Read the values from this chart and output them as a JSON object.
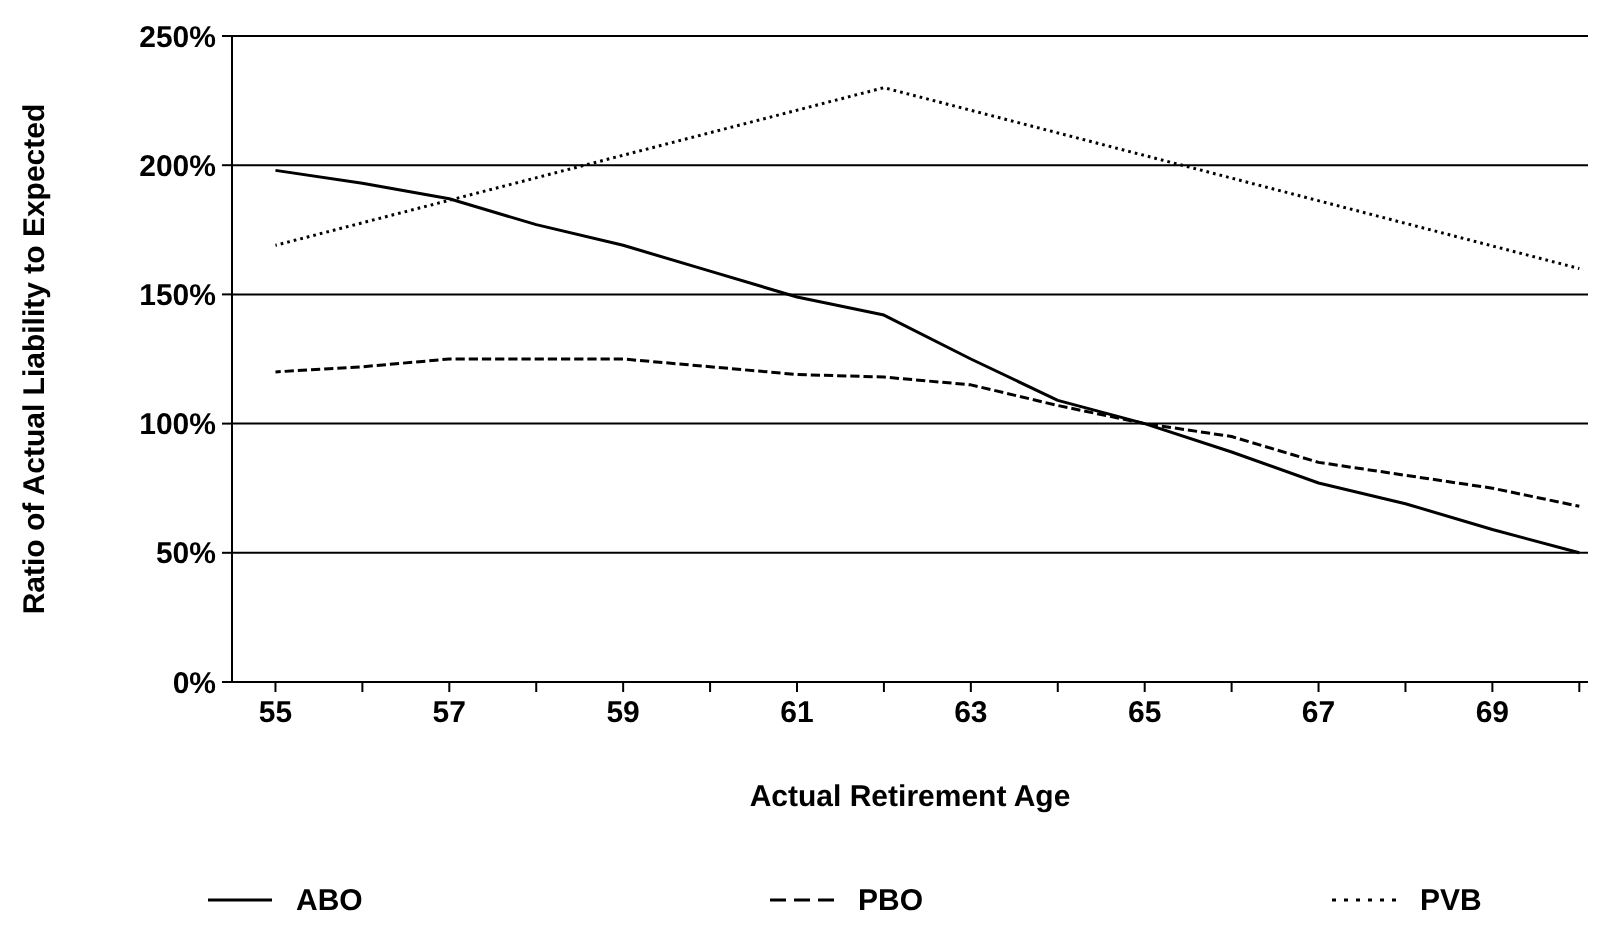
{
  "chart_data": {
    "type": "line",
    "xlabel": "Actual Retirement Age",
    "ylabel": "Ratio of Actual Liability to Expected",
    "xlim": [
      54.5,
      70.1
    ],
    "xticks": [
      55,
      {
        "value": 56,
        "label": null
      },
      57,
      {
        "value": 58,
        "label": null
      },
      59,
      {
        "value": 60,
        "label": null
      },
      61,
      {
        "value": 62,
        "label": null
      },
      63,
      {
        "value": 64,
        "label": null
      },
      65,
      {
        "value": 66,
        "label": null
      },
      67,
      {
        "value": 68,
        "label": null
      },
      69,
      {
        "value": 70,
        "label": null
      }
    ],
    "ylim": [
      0,
      250
    ],
    "yticks": [
      {
        "value": 0,
        "label": "0%"
      },
      {
        "value": 50,
        "label": "50%"
      },
      {
        "value": 100,
        "label": "100%"
      },
      {
        "value": 150,
        "label": "150%"
      },
      {
        "value": 200,
        "label": "200%"
      },
      {
        "value": 250,
        "label": "250%"
      }
    ],
    "grid": "y",
    "legend": "bottom",
    "marker": "none",
    "series": [
      {
        "name": "ABO",
        "color": "#000000",
        "line_style": "solid",
        "x": [
          55,
          56,
          57,
          58,
          59,
          60,
          61,
          62,
          63,
          64,
          65,
          66,
          67,
          68,
          69,
          70
        ],
        "values": [
          198,
          193,
          187,
          177,
          169,
          159,
          149,
          142,
          125,
          109,
          100,
          89,
          77,
          69,
          59,
          50
        ]
      },
      {
        "name": "PBO",
        "color": "#000000",
        "line_style": "dashed",
        "x": [
          55,
          56,
          57,
          58,
          59,
          60,
          61,
          62,
          63,
          64,
          65,
          66,
          67,
          68,
          69,
          70
        ],
        "values": [
          120,
          122,
          125,
          125,
          125,
          122,
          119,
          118,
          115,
          107,
          100,
          95,
          85,
          80,
          75,
          68
        ]
      },
      {
        "name": "PVB",
        "color": "#000000",
        "line_style": "dotted",
        "x": [
          55,
          62,
          70
        ],
        "values": [
          169,
          230,
          160
        ]
      }
    ]
  }
}
